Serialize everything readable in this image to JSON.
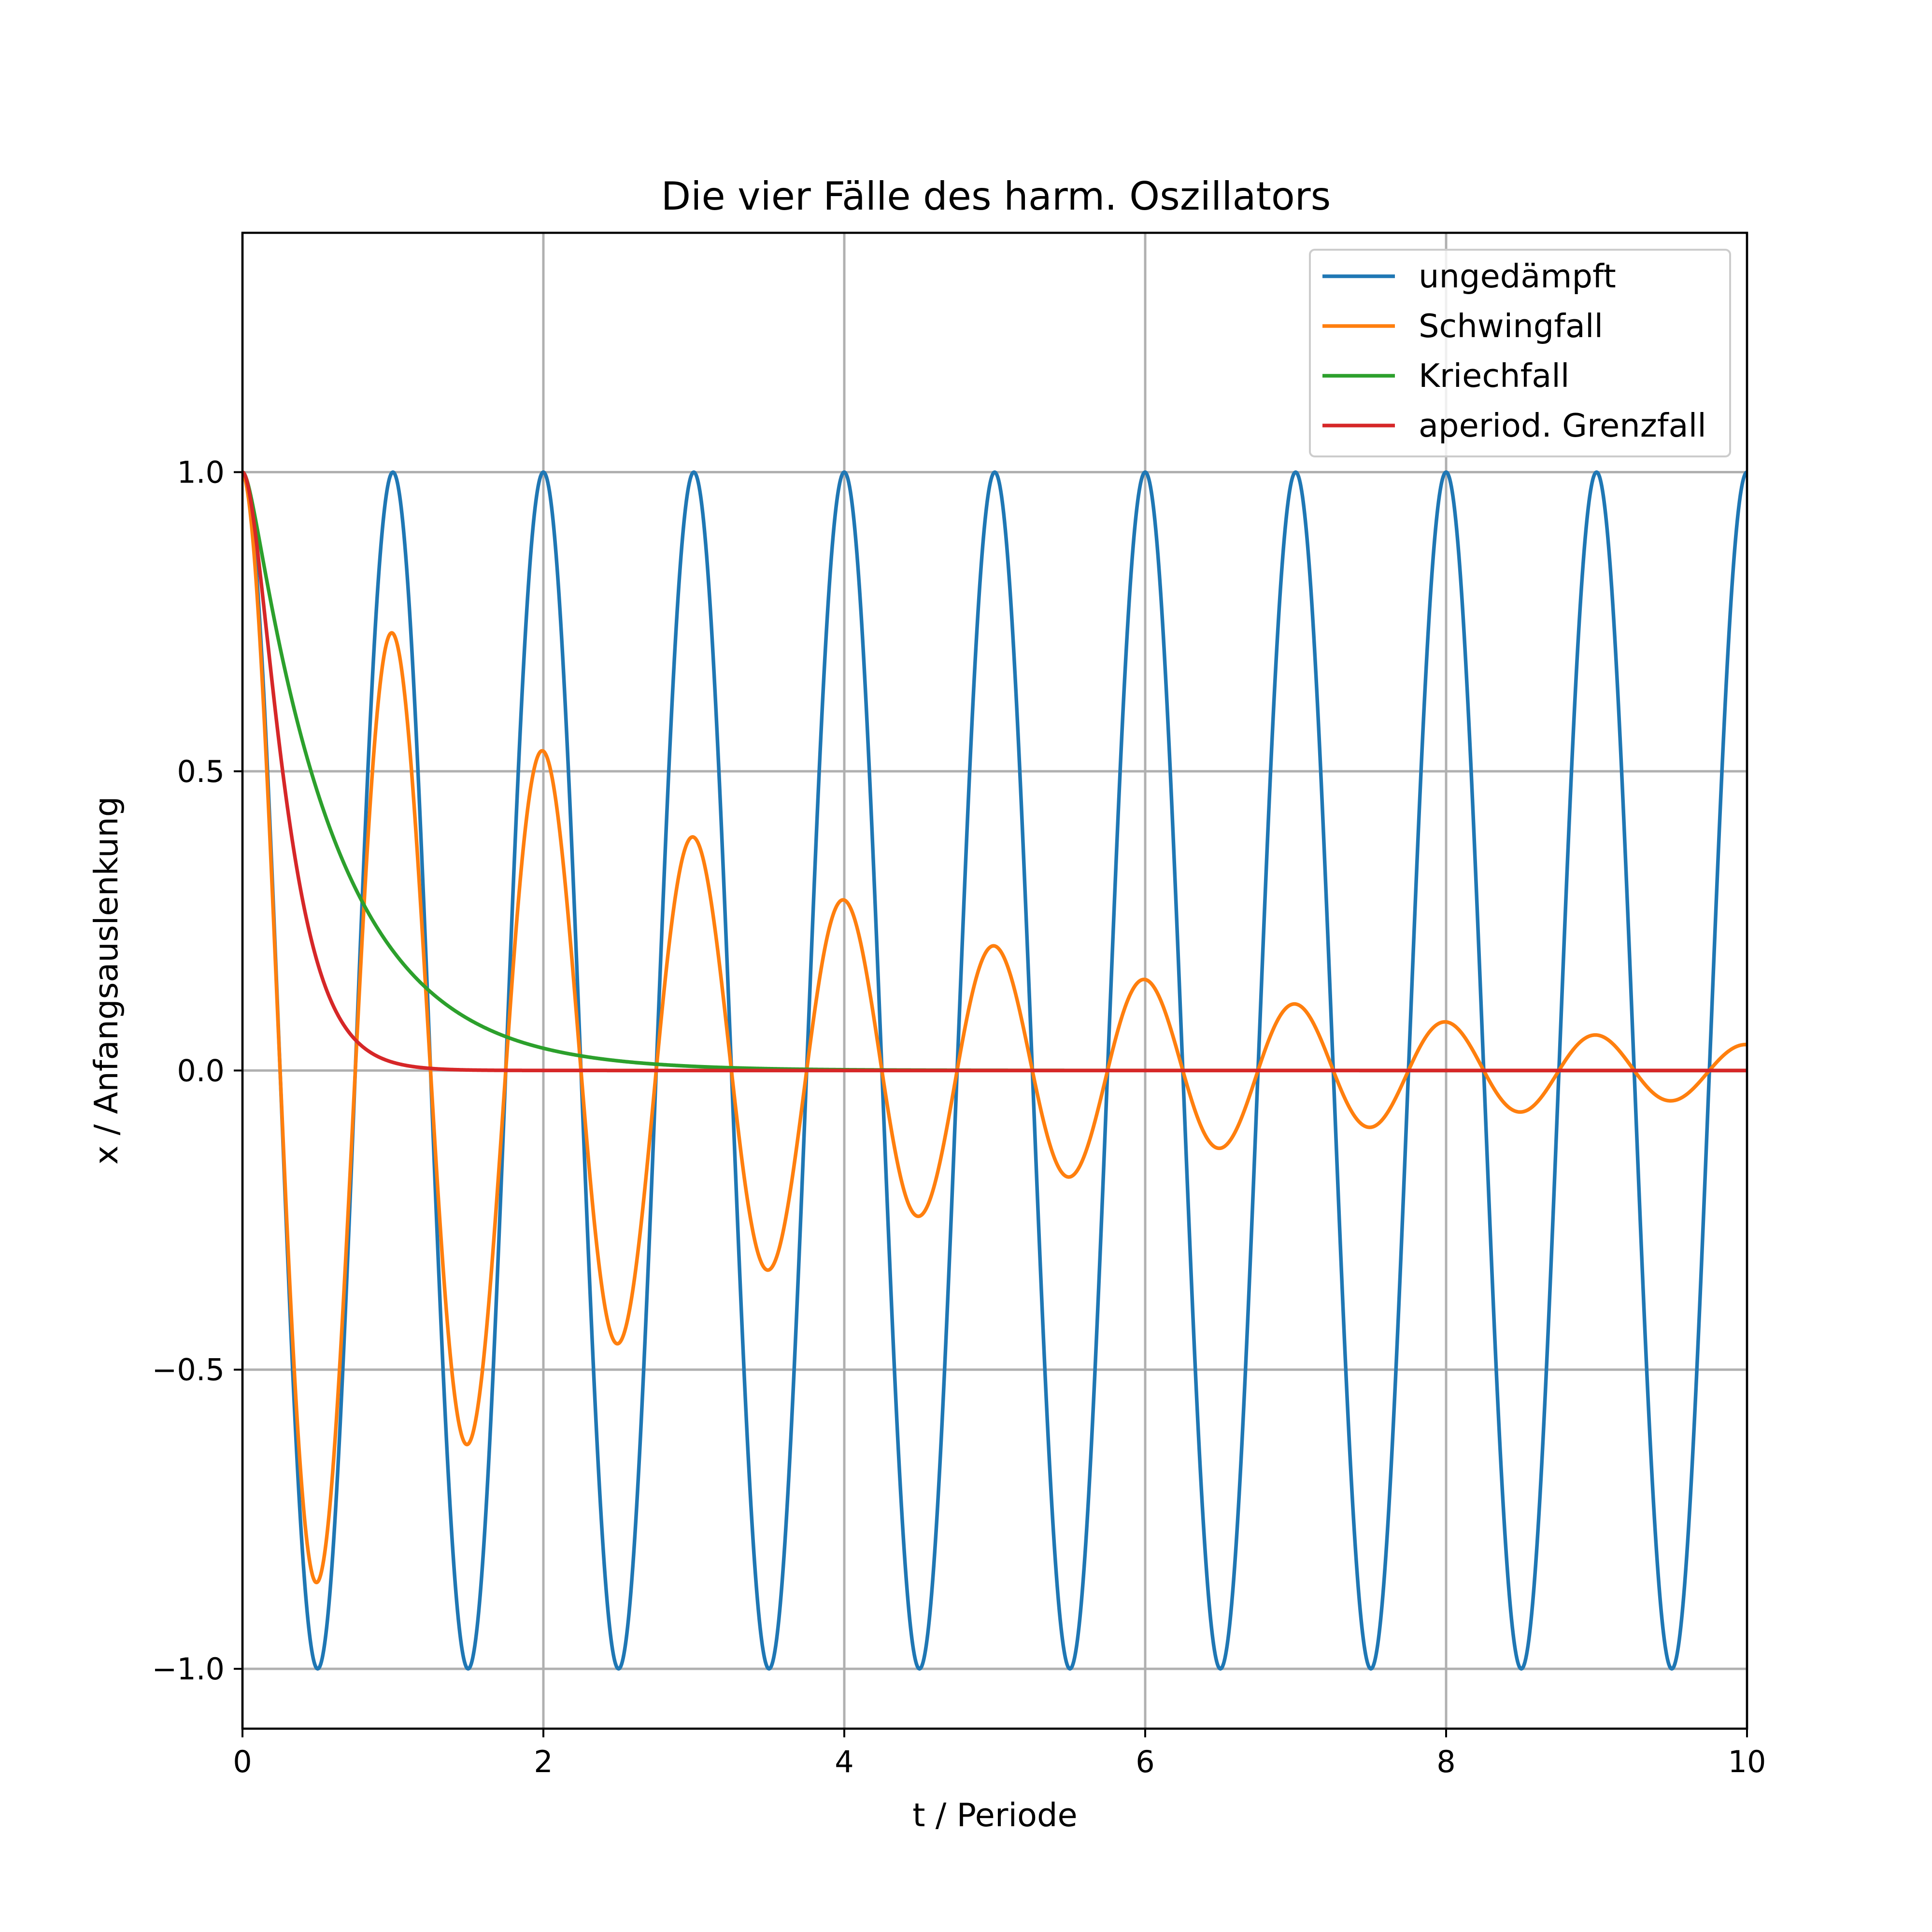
{
  "chart_data": {
    "type": "line",
    "title": "Die vier Fälle des harm. Oszillators",
    "xlabel": "t / Periode",
    "ylabel": "x / Anfangsauslenkung",
    "xlim": [
      0,
      10
    ],
    "ylim": [
      -1.1,
      1.4
    ],
    "xticks": [
      0,
      2,
      4,
      6,
      8,
      10
    ],
    "xtick_labels": [
      "0",
      "2",
      "4",
      "6",
      "8",
      "10"
    ],
    "yticks": [
      -1.0,
      -0.5,
      0.0,
      0.5,
      1.0
    ],
    "ytick_labels": [
      "−1.0",
      "−0.5",
      "0.0",
      "0.5",
      "1.0"
    ],
    "grid": true,
    "legend_position": "top-right",
    "series": [
      {
        "name": "ungedämpft",
        "color": "#1f77b4",
        "model": "x(t) = cos(2πt)",
        "omega": 6.2832,
        "damping": 0
      },
      {
        "name": "Schwingfall",
        "color": "#ff7f0e",
        "model": "x(t) = e^(−δt)·cos(2πt)",
        "omega": 6.2832,
        "damping": 0.314
      },
      {
        "name": "Kriechfall",
        "color": "#2ca02c",
        "model": "overdamped: aperiodic decay from x(0)=1",
        "omega0": 6.2832,
        "damping": 12.566
      },
      {
        "name": "aperiod. Grenzfall",
        "color": "#d62728",
        "model": "critically damped: x(t) = (1 + ω₀t)·e^(−ω₀t)",
        "omega0": 6.2832,
        "damping": 6.2832
      }
    ]
  }
}
